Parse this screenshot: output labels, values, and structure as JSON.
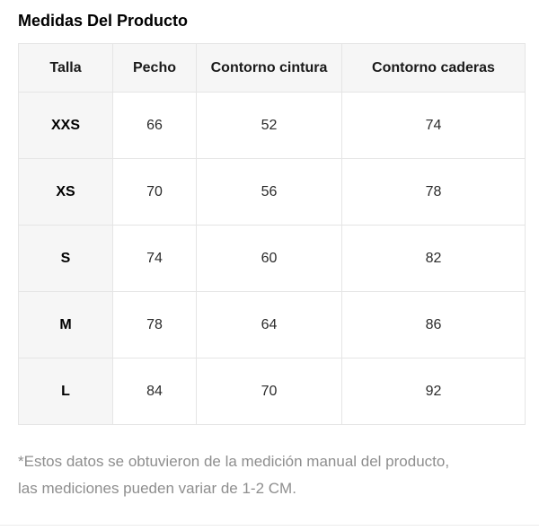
{
  "page": {
    "title": "Medidas Del Producto"
  },
  "table": {
    "columns": [
      "Talla",
      "Pecho",
      "Contorno cintura",
      "Contorno caderas"
    ],
    "rows": [
      {
        "size": "XXS",
        "values": [
          "66",
          "52",
          "74"
        ]
      },
      {
        "size": "XS",
        "values": [
          "70",
          "56",
          "78"
        ]
      },
      {
        "size": "S",
        "values": [
          "74",
          "60",
          "82"
        ]
      },
      {
        "size": "M",
        "values": [
          "78",
          "64",
          "86"
        ]
      },
      {
        "size": "L",
        "values": [
          "84",
          "70",
          "92"
        ]
      }
    ]
  },
  "footnote": {
    "lines": [
      "*Estos datos se obtuvieron de la medición manual del producto,",
      "las mediciones pueden variar de 1-2 CM."
    ]
  },
  "colors": {
    "header_background": "#f6f6f6",
    "table_border": "#e5e5e5",
    "title_text": "#000000",
    "cell_text": "#2b2b2b",
    "footnote_text": "#8e8e8e",
    "divider": "#ececec"
  }
}
